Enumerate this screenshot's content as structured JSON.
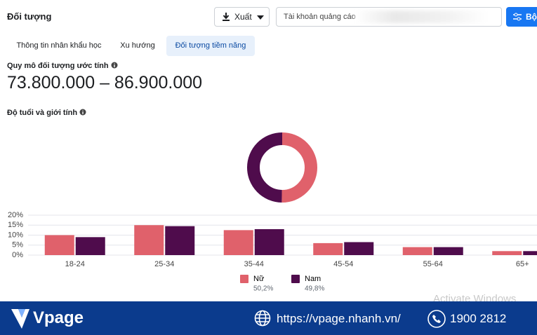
{
  "header": {
    "title": "Đối tượng",
    "export_button": "Xuất",
    "account_placeholder": "Tài khoản quảng cáo",
    "filter_button": "Bộ"
  },
  "tabs": [
    "Thông tin nhân khẩu học",
    "Xu hướng",
    "Đối tượng tiềm năng"
  ],
  "active_tab": 2,
  "audience_size": {
    "label": "Quy mô đối tượng ước tính",
    "value": "73.800.000 – 86.900.000"
  },
  "chart_data": [
    {
      "type": "pie",
      "donut": true,
      "values": [
        50.2,
        49.8
      ],
      "value_labels": [
        "50,2%",
        "49,8%"
      ],
      "colors": [
        "#e0616b",
        "#4f0c4c"
      ]
    },
    {
      "type": "bar",
      "title": "Độ tuổi và giới tính",
      "categories": [
        "18-24",
        "25-34",
        "35-44",
        "45-54",
        "55-64",
        "65+"
      ],
      "series": [
        {
          "name": "Nữ",
          "color": "#e0616b",
          "values": [
            10,
            15,
            12.5,
            6,
            4,
            2
          ]
        },
        {
          "name": "Nam",
          "color": "#4f0c4c",
          "values": [
            9,
            14.5,
            13,
            6.5,
            4,
            2
          ]
        }
      ],
      "ylim": [
        0,
        20
      ],
      "yticks": [
        {
          "value": 0,
          "label": "0%"
        },
        {
          "value": 5,
          "label": "5%"
        },
        {
          "value": 10,
          "label": "10%"
        },
        {
          "value": 15,
          "label": "15%"
        },
        {
          "value": 20,
          "label": "20%"
        }
      ],
      "grid": true
    }
  ],
  "footer": {
    "brand": "Vpage",
    "url": "https://vpage.nhanh.vn/",
    "phone": "1900 2812"
  },
  "watermark": "Activate Windows"
}
